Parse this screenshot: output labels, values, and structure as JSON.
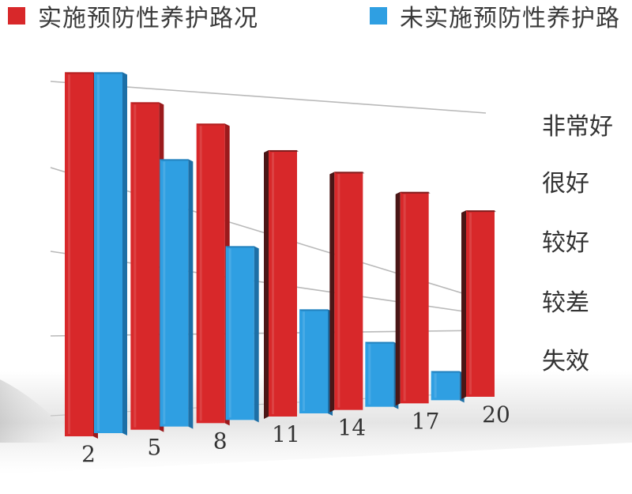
{
  "legend": [
    {
      "label": "实施预防性养护路况",
      "color": "#d8282a"
    },
    {
      "label": "未实施预防性养护路",
      "color": "#2f9fe2"
    }
  ],
  "chart_data": {
    "type": "bar",
    "categories": [
      "2",
      "5",
      "8",
      "11",
      "14",
      "17",
      "20"
    ],
    "series": [
      {
        "name": "实施预防性养护路况",
        "color": "#d8282a",
        "values": [
          4.9,
          4.6,
          4.4,
          4.1,
          3.85,
          3.6,
          3.35
        ]
      },
      {
        "name": "未实施预防性养护路",
        "color": "#2f9fe2",
        "values": [
          4.9,
          3.8,
          2.6,
          1.65,
          1.1,
          0.55,
          null
        ]
      }
    ],
    "y_ticks": [
      "失效",
      "较差",
      "较好",
      "很好",
      "非常好"
    ],
    "ylim": [
      0,
      5
    ],
    "grid": true,
    "legend_position": "top",
    "xlabel": "",
    "ylabel": ""
  }
}
